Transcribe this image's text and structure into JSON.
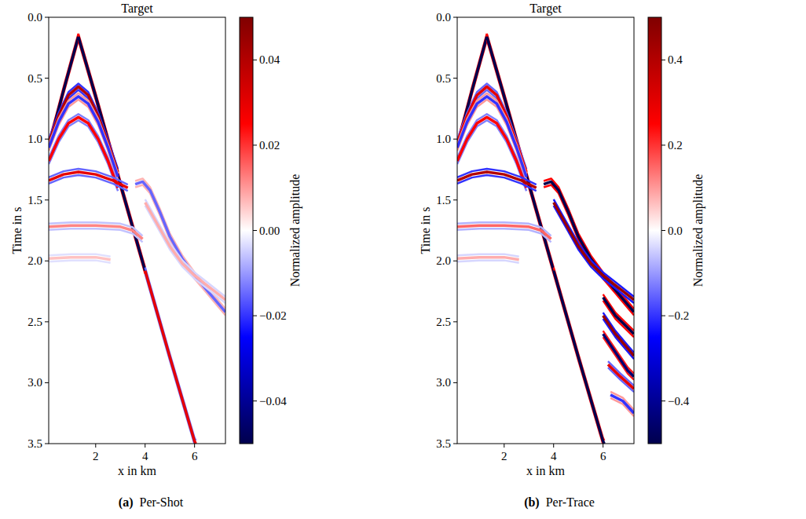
{
  "chart_data": [
    {
      "type": "line",
      "title": "Target",
      "x_label": "x in km",
      "y_label": "Time in s",
      "caption_letter": "(a)",
      "caption": "Per-Shot",
      "xlim": [
        0.1,
        7.25
      ],
      "xticks": [
        2,
        4,
        6
      ],
      "ylim": [
        3.5,
        0.0
      ],
      "yticks": [
        {
          "value": 0.0,
          "label": "0.0"
        },
        {
          "value": 0.5,
          "label": "0.5"
        },
        {
          "value": 1.0,
          "label": "1.0"
        },
        {
          "value": 1.5,
          "label": "1.5"
        },
        {
          "value": 2.0,
          "label": "2.0"
        },
        {
          "value": 2.5,
          "label": "2.5"
        },
        {
          "value": 3.0,
          "label": "3.0"
        },
        {
          "value": 3.5,
          "label": "3.5"
        }
      ],
      "color_label": "Normalized amplitude",
      "color_range": [
        -0.05,
        0.05
      ],
      "color_ticks": [
        {
          "value": -0.04,
          "label": "−0.04"
        },
        {
          "value": -0.02,
          "label": "−0.02"
        },
        {
          "value": 0.0,
          "label": "0.00"
        },
        {
          "value": 0.02,
          "label": "0.02"
        },
        {
          "value": 0.04,
          "label": "0.04"
        }
      ],
      "series": [
        {
          "x": [
            0.1,
            0.4,
            0.7,
            1.0,
            1.3
          ],
          "values": [
            1.05,
            0.83,
            0.6,
            0.38,
            0.16
          ],
          "amplitude": -0.05
        },
        {
          "x": [
            1.3,
            2.0,
            3.0,
            4.0
          ],
          "values": [
            0.16,
            0.65,
            1.37,
            2.08
          ],
          "amplitude": -0.05
        },
        {
          "x": [
            4.0,
            5.0,
            6.0,
            6.05
          ],
          "values": [
            2.08,
            2.79,
            3.48,
            3.5
          ],
          "amplitude": 0.03
        },
        {
          "x": [
            0.1,
            0.5,
            0.9,
            1.3,
            1.7,
            2.1,
            2.5,
            2.9
          ],
          "values": [
            1.03,
            0.81,
            0.64,
            0.57,
            0.64,
            0.81,
            1.03,
            1.27
          ],
          "amplitude": 0.04
        },
        {
          "x": [
            0.1,
            0.5,
            0.9,
            1.3,
            1.7,
            2.1,
            2.5,
            2.9
          ],
          "values": [
            1.07,
            0.86,
            0.71,
            0.65,
            0.71,
            0.86,
            1.07,
            1.31
          ],
          "amplitude": -0.02
        },
        {
          "x": [
            0.1,
            0.5,
            0.9,
            1.3,
            1.7,
            2.1,
            2.5,
            2.9
          ],
          "values": [
            1.18,
            1.0,
            0.87,
            0.82,
            0.87,
            1.0,
            1.18,
            1.4
          ],
          "amplitude": 0.025
        },
        {
          "x": [
            0.1,
            0.7,
            1.3,
            2.0,
            2.7,
            3.3
          ],
          "values": [
            1.34,
            1.29,
            1.27,
            1.29,
            1.34,
            1.4
          ],
          "amplitude": 0.03
        },
        {
          "x": [
            3.6,
            3.9,
            4.2,
            4.6,
            5.0,
            5.5,
            6.0,
            6.5,
            7.0,
            7.25
          ],
          "values": [
            1.37,
            1.35,
            1.42,
            1.6,
            1.8,
            1.98,
            2.12,
            2.24,
            2.36,
            2.42
          ],
          "amplitude": -0.015
        },
        {
          "x": [
            4.0,
            4.5,
            5.0,
            5.5,
            6.0,
            6.5,
            7.0,
            7.25
          ],
          "values": [
            1.52,
            1.7,
            1.88,
            2.02,
            2.12,
            2.2,
            2.28,
            2.32
          ],
          "amplitude": 0.008
        },
        {
          "x": [
            0.1,
            1.0,
            2.0,
            3.0,
            3.5,
            3.9
          ],
          "values": [
            1.72,
            1.71,
            1.71,
            1.72,
            1.75,
            1.82
          ],
          "amplitude": 0.012
        },
        {
          "x": [
            0.1,
            1.0,
            2.0,
            2.6
          ],
          "values": [
            1.98,
            1.97,
            1.97,
            1.99
          ],
          "amplitude": 0.006
        }
      ]
    },
    {
      "type": "line",
      "title": "Target",
      "x_label": "x in km",
      "y_label": "Time in s",
      "caption_letter": "(b)",
      "caption": "Per-Trace",
      "xlim": [
        0.1,
        7.25
      ],
      "xticks": [
        2,
        4,
        6
      ],
      "ylim": [
        3.5,
        0.0
      ],
      "yticks": [
        {
          "value": 0.0,
          "label": "0.0"
        },
        {
          "value": 0.5,
          "label": "0.5"
        },
        {
          "value": 1.0,
          "label": "1.0"
        },
        {
          "value": 1.5,
          "label": "1.5"
        },
        {
          "value": 2.0,
          "label": "2.0"
        },
        {
          "value": 2.5,
          "label": "2.5"
        },
        {
          "value": 3.0,
          "label": "3.0"
        },
        {
          "value": 3.5,
          "label": "3.5"
        }
      ],
      "color_label": "Normalized amplitude",
      "color_range": [
        -0.5,
        0.5
      ],
      "color_ticks": [
        {
          "value": -0.4,
          "label": "−0.4"
        },
        {
          "value": -0.2,
          "label": "−0.2"
        },
        {
          "value": 0.0,
          "label": "0.0"
        },
        {
          "value": 0.2,
          "label": "0.2"
        },
        {
          "value": 0.4,
          "label": "0.4"
        }
      ],
      "series": [
        {
          "x": [
            0.1,
            0.4,
            0.7,
            1.0,
            1.3
          ],
          "values": [
            1.05,
            0.83,
            0.6,
            0.38,
            0.16
          ],
          "amplitude": -0.5
        },
        {
          "x": [
            1.3,
            2.0,
            3.0,
            4.0
          ],
          "values": [
            0.16,
            0.65,
            1.37,
            2.08
          ],
          "amplitude": -0.5
        },
        {
          "x": [
            4.0,
            5.0,
            6.0,
            6.05
          ],
          "values": [
            2.08,
            2.79,
            3.48,
            3.5
          ],
          "amplitude": -0.5
        },
        {
          "x": [
            0.1,
            0.5,
            0.9,
            1.3,
            1.7,
            2.1,
            2.5,
            2.9
          ],
          "values": [
            1.03,
            0.81,
            0.64,
            0.57,
            0.64,
            0.81,
            1.03,
            1.27
          ],
          "amplitude": 0.3
        },
        {
          "x": [
            0.1,
            0.5,
            0.9,
            1.3,
            1.7,
            2.1,
            2.5,
            2.9
          ],
          "values": [
            1.07,
            0.86,
            0.71,
            0.65,
            0.71,
            0.86,
            1.07,
            1.31
          ],
          "amplitude": -0.2
        },
        {
          "x": [
            0.1,
            0.5,
            0.9,
            1.3,
            1.7,
            2.1,
            2.5,
            2.9
          ],
          "values": [
            1.18,
            1.0,
            0.87,
            0.82,
            0.87,
            1.0,
            1.18,
            1.4
          ],
          "amplitude": 0.25
        },
        {
          "x": [
            0.1,
            0.7,
            1.3,
            2.0,
            2.7,
            3.3
          ],
          "values": [
            1.34,
            1.29,
            1.27,
            1.29,
            1.34,
            1.4
          ],
          "amplitude": 0.4
        },
        {
          "x": [
            3.6,
            3.9,
            4.2,
            4.6,
            5.0,
            5.5,
            6.0,
            6.5,
            7.0,
            7.25
          ],
          "values": [
            1.37,
            1.35,
            1.42,
            1.6,
            1.8,
            1.98,
            2.12,
            2.24,
            2.36,
            2.42
          ],
          "amplitude": -0.5
        },
        {
          "x": [
            4.0,
            4.5,
            5.0,
            5.5,
            6.0,
            6.5,
            7.0,
            7.25
          ],
          "values": [
            1.52,
            1.7,
            1.88,
            2.02,
            2.12,
            2.2,
            2.28,
            2.32
          ],
          "amplitude": 0.45
        },
        {
          "x": [
            0.1,
            1.0,
            2.0,
            3.0,
            3.5,
            3.9
          ],
          "values": [
            1.72,
            1.71,
            1.71,
            1.72,
            1.75,
            1.82
          ],
          "amplitude": 0.15
        },
        {
          "x": [
            0.1,
            1.0,
            2.0,
            2.6
          ],
          "values": [
            1.98,
            1.97,
            1.97,
            1.99
          ],
          "amplitude": 0.08
        },
        {
          "x": [
            6.0,
            6.5,
            7.0,
            7.25
          ],
          "values": [
            2.3,
            2.45,
            2.55,
            2.6
          ],
          "amplitude": -0.5
        },
        {
          "x": [
            6.0,
            6.5,
            7.0,
            7.25
          ],
          "values": [
            2.45,
            2.6,
            2.72,
            2.78
          ],
          "amplitude": 0.45
        },
        {
          "x": [
            6.0,
            6.5,
            7.0,
            7.25
          ],
          "values": [
            2.6,
            2.75,
            2.9,
            2.95
          ],
          "amplitude": -0.45
        },
        {
          "x": [
            6.2,
            6.7,
            7.25
          ],
          "values": [
            2.85,
            2.95,
            3.05
          ],
          "amplitude": 0.3
        },
        {
          "x": [
            6.3,
            6.8,
            7.25
          ],
          "values": [
            3.1,
            3.15,
            3.25
          ],
          "amplitude": -0.2
        }
      ]
    }
  ]
}
